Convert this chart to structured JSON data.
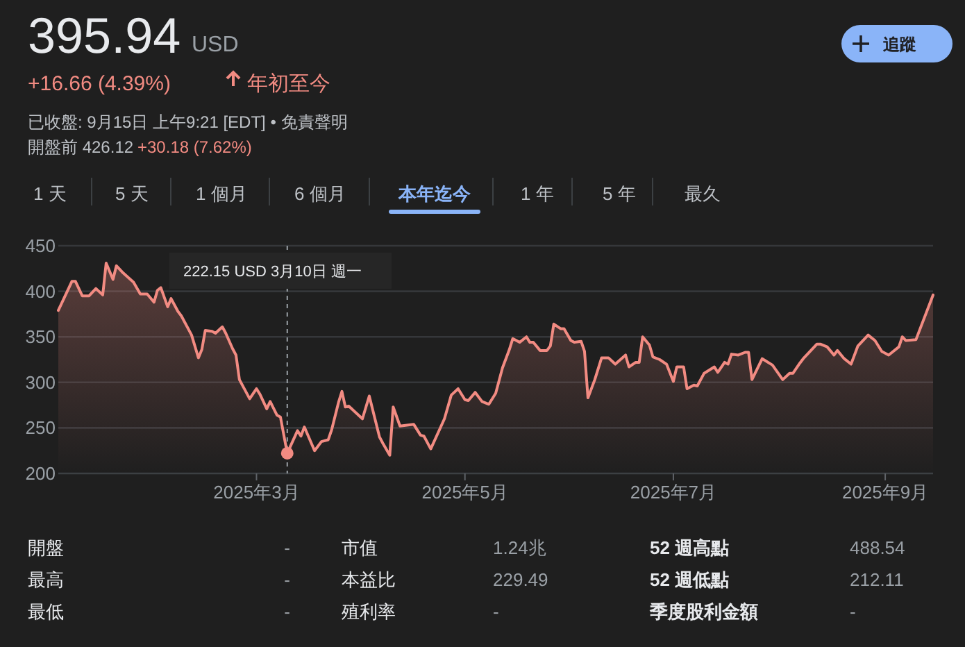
{
  "chart_data": {
    "type": "area",
    "title": "395.94",
    "x": [
      "2025-01-02",
      "2025-01-06",
      "2025-01-07",
      "2025-01-09",
      "2025-01-11",
      "2025-01-13",
      "2025-01-15",
      "2025-01-16",
      "2025-01-18",
      "2025-01-19",
      "2025-01-21",
      "2025-01-24",
      "2025-01-26",
      "2025-01-28",
      "2025-01-30",
      "2025-01-31",
      "2025-02-01",
      "2025-02-03",
      "2025-02-04",
      "2025-02-06",
      "2025-02-07",
      "2025-02-10",
      "2025-02-12",
      "2025-02-13",
      "2025-02-14",
      "2025-02-16",
      "2025-02-17",
      "2025-02-19",
      "2025-02-20",
      "2025-02-22",
      "2025-02-23",
      "2025-02-24",
      "2025-02-27",
      "2025-03-01",
      "2025-03-02",
      "2025-03-04",
      "2025-03-05",
      "2025-03-07",
      "2025-03-08",
      "2025-03-10",
      "2025-03-13",
      "2025-03-14",
      "2025-03-15",
      "2025-03-18",
      "2025-03-20",
      "2025-03-22",
      "2025-03-23",
      "2025-03-25",
      "2025-03-26",
      "2025-03-27",
      "2025-03-28",
      "2025-04-01",
      "2025-04-03",
      "2025-04-06",
      "2025-04-07",
      "2025-04-09",
      "2025-04-10",
      "2025-04-12",
      "2025-04-16",
      "2025-04-18",
      "2025-04-19",
      "2025-04-21",
      "2025-04-25",
      "2025-04-27",
      "2025-04-29",
      "2025-05-01",
      "2025-05-02",
      "2025-05-04",
      "2025-05-06",
      "2025-05-08",
      "2025-05-10",
      "2025-05-12",
      "2025-05-14",
      "2025-05-15",
      "2025-05-17",
      "2025-05-19",
      "2025-05-20",
      "2025-05-21",
      "2025-05-23",
      "2025-05-25",
      "2025-05-26",
      "2025-05-27",
      "2025-05-29",
      "2025-05-30",
      "2025-06-01",
      "2025-06-02",
      "2025-06-04",
      "2025-06-05",
      "2025-06-06",
      "2025-06-08",
      "2025-06-10",
      "2025-06-12",
      "2025-06-14",
      "2025-06-17",
      "2025-06-18",
      "2025-06-20",
      "2025-06-21",
      "2025-06-22",
      "2025-06-24",
      "2025-06-25",
      "2025-06-27",
      "2025-06-29",
      "2025-07-01",
      "2025-07-02",
      "2025-07-04",
      "2025-07-05",
      "2025-07-07",
      "2025-07-08",
      "2025-07-10",
      "2025-07-13",
      "2025-07-14",
      "2025-07-16",
      "2025-07-17",
      "2025-07-18",
      "2025-07-20",
      "2025-07-22",
      "2025-07-23",
      "2025-07-24",
      "2025-07-27",
      "2025-07-30",
      "2025-08-02",
      "2025-08-04",
      "2025-08-05",
      "2025-08-07",
      "2025-08-08",
      "2025-08-12",
      "2025-08-13",
      "2025-08-15",
      "2025-08-17",
      "2025-08-18",
      "2025-08-20",
      "2025-08-22",
      "2025-08-24",
      "2025-08-27",
      "2025-08-29",
      "2025-08-31",
      "2025-09-02",
      "2025-09-05",
      "2025-09-06",
      "2025-09-07",
      "2025-09-10",
      "2025-09-15"
    ],
    "series": [
      {
        "color": "#f28b82",
        "values": [
          379,
          411,
          411,
          395,
          395,
          403,
          396,
          431,
          413,
          428,
          420,
          410,
          397,
          397,
          388,
          401,
          404,
          383,
          392,
          378,
          373,
          352,
          327,
          336,
          357,
          356,
          354,
          361,
          354,
          337,
          330,
          303,
          282,
          293,
          287,
          271,
          279,
          264,
          262,
          222.15,
          247,
          241,
          251,
          225,
          235,
          237,
          248,
          278,
          290,
          273,
          274,
          260,
          285,
          240,
          233,
          220,
          273,
          252,
          254,
          242,
          241,
          227,
          260,
          286,
          293,
          281,
          280,
          289,
          279,
          276,
          288,
          316,
          336,
          348,
          344,
          350,
          344,
          344,
          335,
          335,
          340,
          364,
          359,
          359,
          346,
          344,
          345,
          334,
          283,
          303,
          327,
          327,
          320,
          330,
          317,
          322,
          322,
          350,
          341,
          328,
          325,
          320,
          301,
          317,
          317,
          293,
          297,
          296,
          310,
          317,
          311,
          322,
          320,
          331,
          330,
          333,
          333,
          303,
          326,
          319,
          303,
          310,
          310,
          321,
          326,
          342,
          342,
          339,
          330,
          335,
          326,
          320,
          340,
          352,
          346,
          334,
          330,
          339,
          350,
          346,
          347,
          395.94
        ]
      }
    ],
    "xlim": [
      "2025-01-02",
      "2025-09-15"
    ],
    "xticks": [
      {
        "value": "2025-03-01",
        "label": "2025年3月"
      },
      {
        "value": "2025-05-01",
        "label": "2025年5月"
      },
      {
        "value": "2025-07-01",
        "label": "2025年7月"
      },
      {
        "value": "2025-09-01",
        "label": "2025年9月"
      }
    ],
    "ylim": [
      200,
      450
    ],
    "yticks": [
      200,
      250,
      300,
      350,
      400,
      450
    ],
    "grid": "y",
    "ref_lines": [
      {
        "axis": "x",
        "value": "2025-03-10",
        "line_style": "dashed",
        "color": "#9aa0a6"
      }
    ],
    "annotations": [
      "USD",
      "+16.66 (4.39%)",
      "年初至今",
      "已收盤: 9月15日 上午9:21 [EDT] • 免責聲明",
      "開盤前 426.12",
      "+30.18 (7.62%)",
      "追蹤",
      "1 天",
      "5 天",
      "1 個月",
      "6 個月",
      "本年迄今",
      "1 年",
      "5 年",
      "最久",
      "開盤",
      "-",
      "市值",
      "1.24兆",
      "52 週高點",
      "488.54",
      "最高",
      "-",
      "本益比",
      "229.49",
      "52 週低點",
      "212.11",
      "最低",
      "-",
      "殖利率",
      "-",
      "季度股利金額",
      "-",
      "222.15 USD 3月10日 週一"
    ]
  }
}
